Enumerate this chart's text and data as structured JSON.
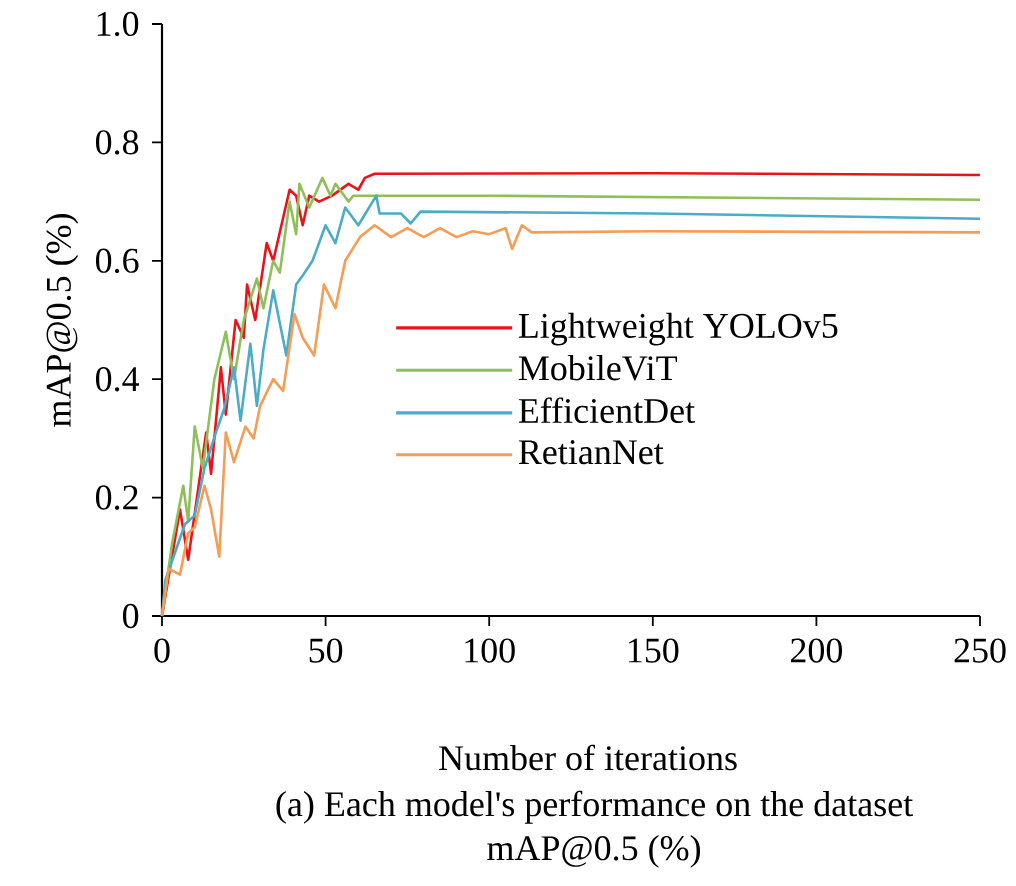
{
  "chart_data": {
    "type": "line",
    "xlabel": "Number of iterations",
    "ylabel": "mAP@0.5 (%)",
    "annotations": [
      "(a) Each model's performance on the dataset",
      "mAP@0.5  (%)"
    ],
    "xlim": [
      0,
      250
    ],
    "ylim": [
      0,
      1.0
    ],
    "xticks": [
      0,
      50,
      100,
      150,
      200,
      250
    ],
    "yticks": [
      {
        "value": 0,
        "label": "0"
      },
      0.2,
      0.4,
      0.6,
      0.8,
      {
        "value": 1.0,
        "label": "1.0"
      }
    ],
    "grid": false,
    "legend": "right",
    "line_style": "solid",
    "marker": "none",
    "series": [
      {
        "name": "Lightweight YOLOv5",
        "color": "#e8141a",
        "x": [
          0,
          5.5,
          8,
          13.5,
          15,
          18,
          19.5,
          22.5,
          25,
          26,
          28.5,
          32,
          34,
          39,
          41,
          43,
          45,
          48,
          52,
          57,
          60,
          62,
          65,
          150,
          250
        ],
        "values": [
          0,
          0.18,
          0.095,
          0.31,
          0.24,
          0.42,
          0.34,
          0.5,
          0.47,
          0.56,
          0.5,
          0.63,
          0.6,
          0.72,
          0.71,
          0.66,
          0.71,
          0.7,
          0.71,
          0.73,
          0.72,
          0.74,
          0.747,
          0.748,
          0.745
        ]
      },
      {
        "name": "MobileViT",
        "color": "#8fbf5a",
        "x": [
          0,
          3,
          6.5,
          8,
          10,
          12.5,
          16,
          19.5,
          22,
          25,
          29,
          31,
          34,
          36,
          39,
          41,
          42,
          45,
          49,
          51.5,
          53,
          57,
          58.5,
          100,
          250
        ],
        "values": [
          0,
          0.12,
          0.22,
          0.16,
          0.32,
          0.25,
          0.4,
          0.48,
          0.4,
          0.5,
          0.57,
          0.52,
          0.6,
          0.58,
          0.7,
          0.645,
          0.73,
          0.69,
          0.74,
          0.71,
          0.73,
          0.7,
          0.71,
          0.71,
          0.703
        ]
      },
      {
        "name": "EfficientDet",
        "color": "#4bacc6",
        "x": [
          0,
          1,
          7,
          10,
          13,
          16.5,
          19,
          22,
          24,
          27,
          29,
          31,
          34,
          38,
          41,
          43,
          46,
          50,
          53,
          56,
          60,
          65.5,
          66.5,
          73,
          76,
          79,
          150,
          250
        ],
        "values": [
          0,
          0.06,
          0.155,
          0.17,
          0.25,
          0.31,
          0.35,
          0.42,
          0.33,
          0.46,
          0.355,
          0.45,
          0.55,
          0.44,
          0.56,
          0.575,
          0.6,
          0.66,
          0.63,
          0.69,
          0.66,
          0.71,
          0.68,
          0.68,
          0.663,
          0.683,
          0.68,
          0.671
        ]
      },
      {
        "name": "RetianNet",
        "color": "#f59d56",
        "x": [
          0,
          2,
          5.5,
          8,
          10,
          13,
          15,
          17.5,
          19.5,
          22,
          25.5,
          28,
          30,
          34,
          37,
          40.5,
          43,
          46.5,
          49.5,
          53,
          56,
          60.5,
          65,
          70,
          75,
          80,
          85,
          90,
          95,
          100,
          105,
          107,
          110,
          113,
          150,
          250
        ],
        "values": [
          0,
          0.08,
          0.07,
          0.14,
          0.15,
          0.22,
          0.18,
          0.1,
          0.31,
          0.26,
          0.32,
          0.3,
          0.355,
          0.4,
          0.38,
          0.51,
          0.47,
          0.44,
          0.56,
          0.52,
          0.6,
          0.64,
          0.66,
          0.64,
          0.655,
          0.64,
          0.655,
          0.64,
          0.65,
          0.645,
          0.655,
          0.62,
          0.66,
          0.648,
          0.65,
          0.648
        ]
      }
    ]
  }
}
